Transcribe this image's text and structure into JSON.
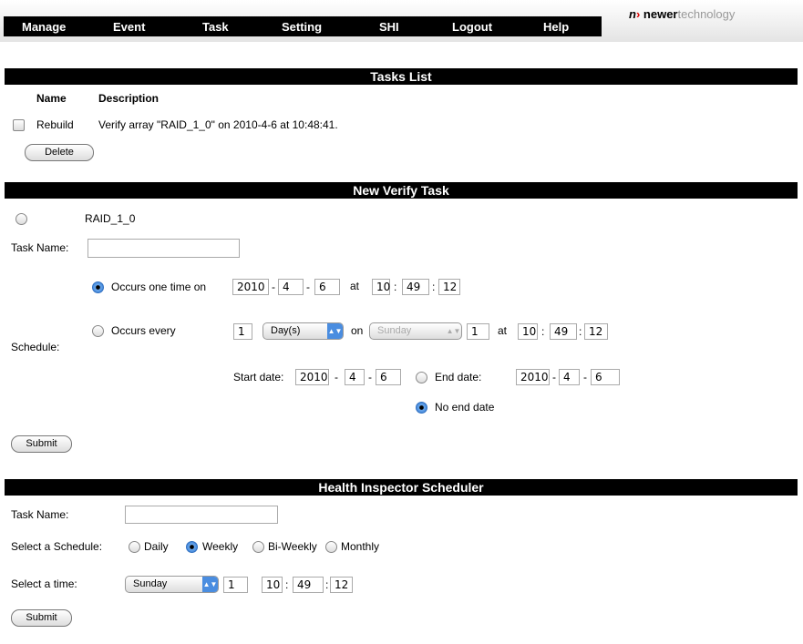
{
  "nav": [
    "Manage",
    "Event",
    "Task",
    "Setting",
    "SHI",
    "Logout",
    "Help"
  ],
  "logo": {
    "mark": "n",
    "text1": "newer",
    "text2": "technology"
  },
  "tasks_list": {
    "title": "Tasks List",
    "col_name": "Name",
    "col_desc": "Description",
    "rows": [
      {
        "name": "Rebuild",
        "description": "Verify array \"RAID_1_0\" on 2010-4-6 at 10:48:41."
      }
    ],
    "delete": "Delete"
  },
  "verify": {
    "title": "New Verify Task",
    "array": "RAID_1_0",
    "task_name_label": "Task Name:",
    "task_name": "",
    "schedule_label": "Schedule:",
    "once": {
      "label": "Occurs one time on",
      "year": "2010",
      "month": "4",
      "day": "6",
      "at": "at",
      "h": "10",
      "m": "49",
      "s": "12"
    },
    "every": {
      "label": "Occurs every",
      "n": "1",
      "unit": "Day(s)",
      "on": "on",
      "weekday": "Sunday",
      "num": "1",
      "at": "at",
      "h": "10",
      "m": "49",
      "s": "12"
    },
    "start": {
      "label": "Start date:",
      "year": "2010",
      "month": "4",
      "day": "6"
    },
    "end": {
      "label": "End date:",
      "year": "2010",
      "month": "4",
      "day": "6"
    },
    "no_end": "No end date",
    "submit": "Submit",
    "dash": "-",
    "colon": ":"
  },
  "health": {
    "title": "Health Inspector Scheduler",
    "task_name_label": "Task Name:",
    "task_name": "",
    "schedule_label": "Select a Schedule:",
    "options": [
      "Daily",
      "Weekly",
      "Bi-Weekly",
      "Monthly"
    ],
    "selected": "Weekly",
    "time_label": "Select a time:",
    "weekday": "Sunday",
    "num": "1",
    "h": "10",
    "m": "49",
    "s": "12",
    "submit": "Submit"
  }
}
